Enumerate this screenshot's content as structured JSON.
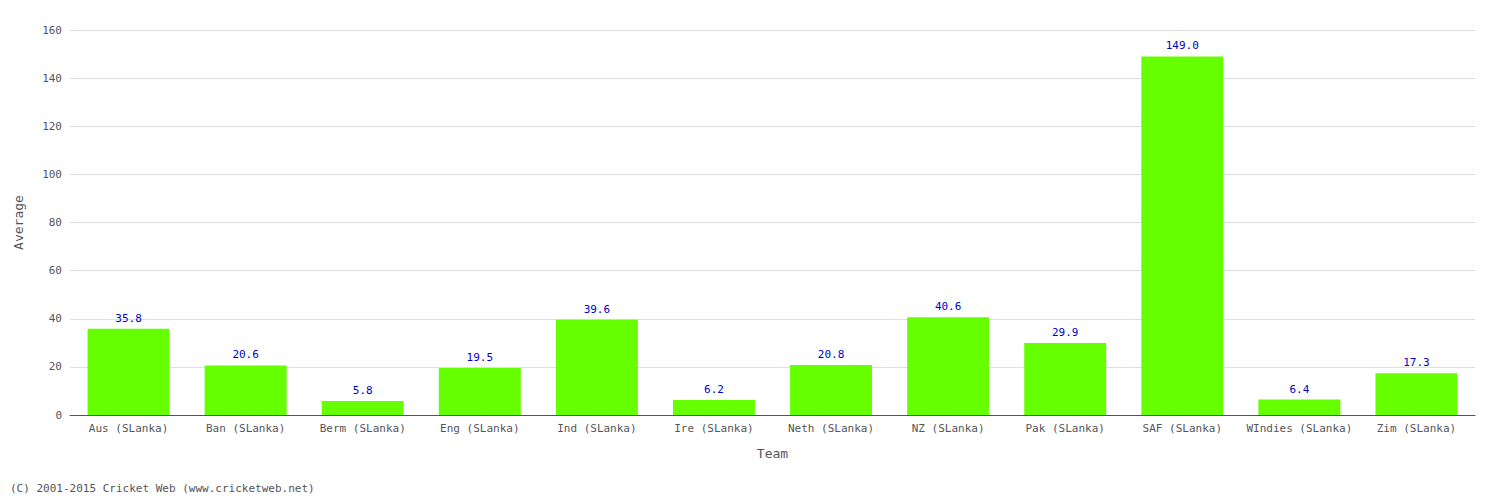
{
  "chart_data": {
    "type": "bar",
    "categories": [
      "Aus (SLanka)",
      "Ban (SLanka)",
      "Berm (SLanka)",
      "Eng (SLanka)",
      "Ind (SLanka)",
      "Ire (SLanka)",
      "Neth (SLanka)",
      "NZ (SLanka)",
      "Pak (SLanka)",
      "SAF (SLanka)",
      "WIndies (SLanka)",
      "Zim (SLanka)"
    ],
    "values": [
      35.8,
      20.6,
      5.8,
      19.5,
      39.6,
      6.2,
      20.8,
      40.6,
      29.9,
      149.0,
      6.4,
      17.3
    ],
    "value_labels": [
      "35.8",
      "20.6",
      "5.8",
      "19.5",
      "39.6",
      "6.2",
      "20.8",
      "40.6",
      "29.9",
      "149.0",
      "6.4",
      "17.3"
    ],
    "data_labels": true,
    "color": "#66ff00",
    "xlabel": "Team",
    "ylabel": "Average",
    "ylim": [
      0,
      160
    ],
    "yticks": [
      0,
      20,
      40,
      60,
      80,
      100,
      120,
      140,
      160
    ],
    "grid": true,
    "annotations": [
      "(C) 2001-2015 Cricket Web (www.cricketweb.net)"
    ]
  }
}
